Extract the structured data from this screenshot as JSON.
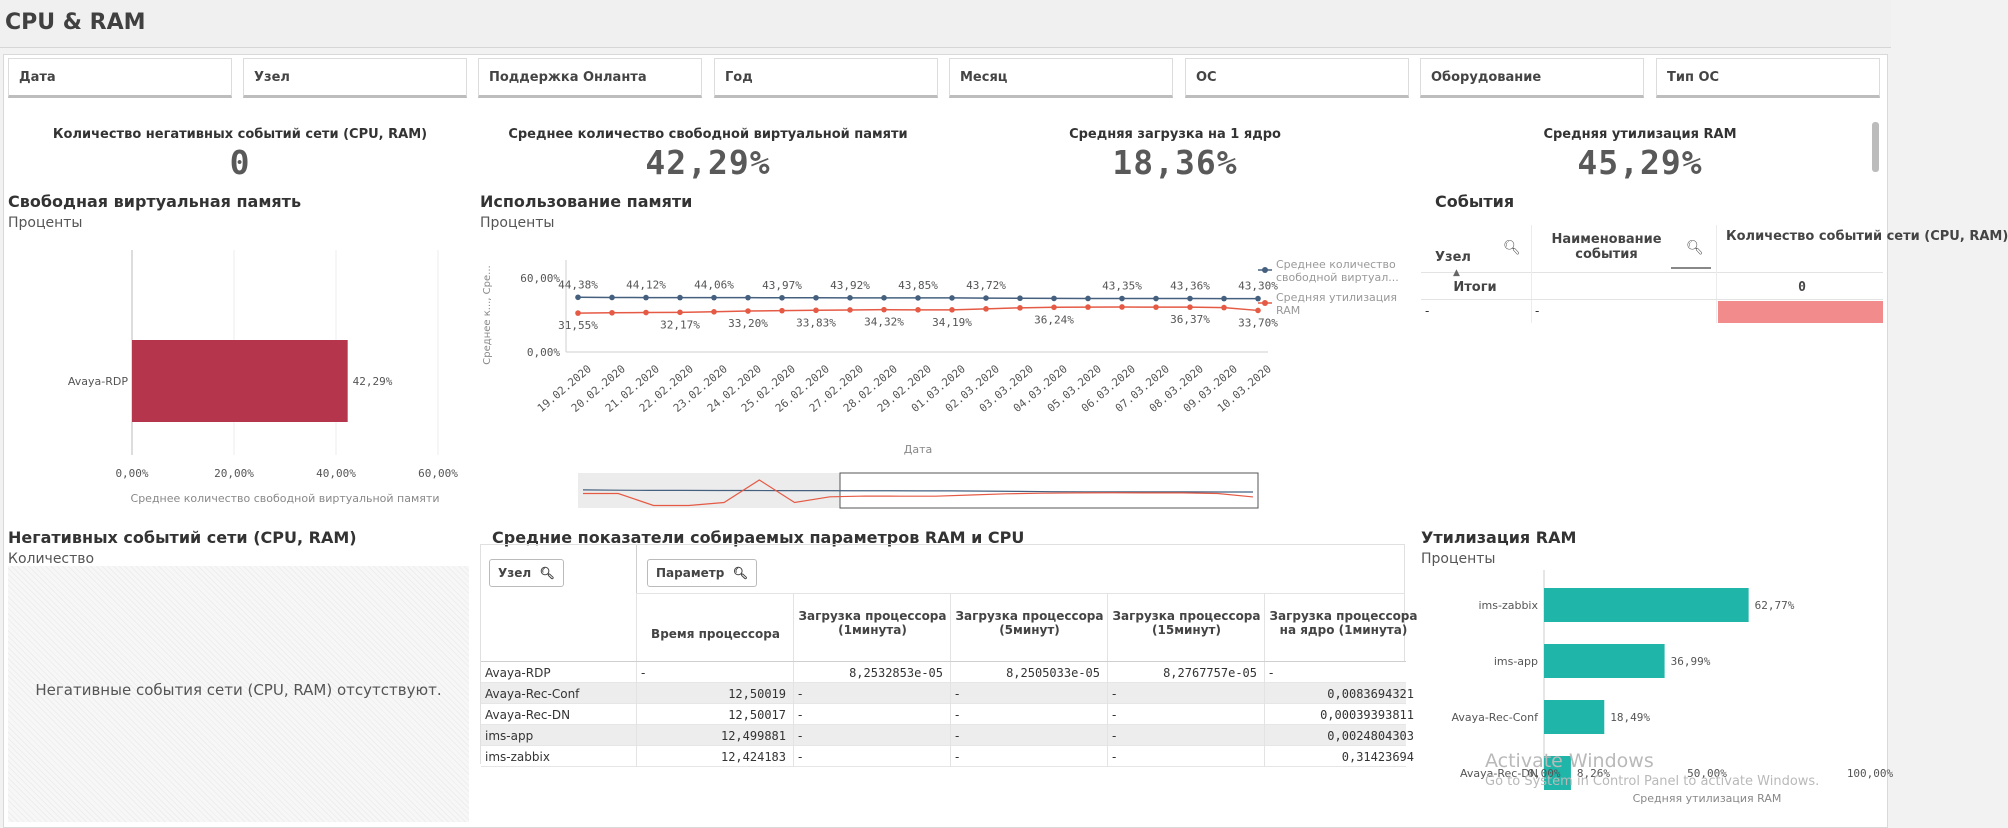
{
  "app_title": "CPU & RAM",
  "filters": [
    "Дата",
    "Узел",
    "Поддержка Онланта",
    "Год",
    "Месяц",
    "ОС",
    "Оборудование",
    "Тип ОС"
  ],
  "kpis": [
    {
      "label": "Количество негативных событий сети (CPU, RAM)",
      "value": "0"
    },
    {
      "label": "Среднее количество свободной виртуальной памяти",
      "value": "42,29%"
    },
    {
      "label": "Средняя загрузка на 1 ядро",
      "value": "18,36%"
    },
    {
      "label": "Средняя утилизация RAM",
      "value": "45,29%"
    }
  ],
  "free_vm_panel": {
    "title": "Свободная виртуальная память",
    "subtitle": "Проценты",
    "xlabel": "Среднее количество свободной виртуальной памяти"
  },
  "memory_panel": {
    "title": "Использование памяти",
    "subtitle": "Проценты",
    "ylabel": "Среднее к..., Сре...",
    "xlabel": "Дата"
  },
  "events_panel": {
    "title": "События",
    "col_node": "Узел",
    "col_name": "Наименование события",
    "col_count": "Количество событий сети (CPU, RAM)",
    "totals_label": "Итоги",
    "totals_value": "0",
    "row_node": "-",
    "row_name": "-"
  },
  "neg_panel": {
    "title": "Негативных событий сети (CPU, RAM)",
    "subtitle": "Количество",
    "empty_message": "Негативные события сети (CPU, RAM) отсутствуют."
  },
  "params_panel": {
    "title": "Средние показатели собираемых параметров RAM и CPU",
    "node_button": "Узел",
    "param_button": "Параметр",
    "columns": [
      "Время процессора",
      "Загрузка процессора (1минута)",
      "Загрузка процессора (5минут)",
      "Загрузка процессора (15минут)",
      "Загрузка процессора на ядро (1минута)"
    ],
    "rows": [
      {
        "node": "Avaya-RDP",
        "cells": [
          "-",
          "8,2532853e-05",
          "8,2505033e-05",
          "8,2767757e-05",
          "-"
        ]
      },
      {
        "node": "Avaya-Rec-Conf",
        "cells": [
          "12,50019",
          "-",
          "-",
          "-",
          "0,0083694321"
        ]
      },
      {
        "node": "Avaya-Rec-DN",
        "cells": [
          "12,50017",
          "-",
          "-",
          "-",
          "0,00039393811"
        ]
      },
      {
        "node": "ims-app",
        "cells": [
          "12,499881",
          "-",
          "-",
          "-",
          "0,0024804303"
        ]
      },
      {
        "node": "ims-zabbix",
        "cells": [
          "12,424183",
          "-",
          "-",
          "-",
          "0,31423694"
        ]
      }
    ]
  },
  "ram_panel": {
    "title": "Утилизация RAM",
    "subtitle": "Проценты",
    "xlabel": "Средняя утилизация RAM"
  },
  "watermark": {
    "line1": "Activate Windows",
    "line2": "Go to System in Control Panel to activate Windows."
  },
  "colors": {
    "vm_bar": "#b5364c",
    "ram_bar": "#1fb5a8",
    "line_vm": "#45607f",
    "line_ram": "#e55a45",
    "events_total_cell": "#f28b8b"
  },
  "chart_data": [
    {
      "type": "bar",
      "orientation": "horizontal",
      "categories": [
        "Avaya-RDP"
      ],
      "values": [
        42.29
      ],
      "value_labels": [
        "42,29%"
      ],
      "xlabel": "Среднее количество свободной виртуальной памяти",
      "xlim": [
        0,
        60
      ],
      "x_ticks": [
        "0,00%",
        "20,00%",
        "40,00%",
        "60,00%"
      ],
      "grid": true
    },
    {
      "type": "line",
      "x": [
        "19.02.2020",
        "20.02.2020",
        "21.02.2020",
        "22.02.2020",
        "23.02.2020",
        "24.02.2020",
        "25.02.2020",
        "26.02.2020",
        "27.02.2020",
        "28.02.2020",
        "29.02.2020",
        "01.03.2020",
        "02.03.2020",
        "03.03.2020",
        "04.03.2020",
        "05.03.2020",
        "06.03.2020",
        "07.03.2020",
        "08.03.2020",
        "09.03.2020",
        "10.03.2020"
      ],
      "series": [
        {
          "name": "Среднее количество свободной виртуал...",
          "values": [
            44.38,
            44.2,
            44.12,
            44.12,
            44.06,
            44.06,
            43.97,
            43.97,
            43.92,
            43.92,
            43.85,
            43.85,
            43.72,
            43.6,
            43.45,
            43.4,
            43.35,
            43.35,
            43.36,
            43.3,
            43.3
          ]
        },
        {
          "name": "Средняя утилизация RAM",
          "values": [
            31.55,
            31.8,
            32.0,
            32.17,
            32.6,
            33.2,
            33.5,
            33.83,
            34.1,
            34.32,
            34.19,
            34.19,
            35.0,
            35.8,
            36.24,
            36.4,
            36.5,
            36.37,
            36.37,
            36.0,
            33.7
          ]
        }
      ],
      "point_labels": {
        "Среднее количество свободной виртуал...": {
          "0": "44,38%",
          "2": "44,12%",
          "4": "44,06%",
          "6": "43,97%",
          "8": "43,92%",
          "10": "43,85%",
          "12": "43,72%",
          "16": "43,35%",
          "18": "43,36%",
          "20": "43,30%"
        },
        "Средняя утилизация RAM": {
          "0": "31,55%",
          "3": "32,17%",
          "5": "33,20%",
          "7": "33,83%",
          "9": "34,32%",
          "11": "34,19%",
          "14": "36,24%",
          "18": "36,37%",
          "20": "33,70%"
        }
      },
      "xlabel": "Дата",
      "ylabel": "Среднее к..., Сре...",
      "ylim": [
        0,
        60
      ],
      "y_ticks": [
        "0,00%",
        "60,00%"
      ],
      "legend": "right"
    },
    {
      "type": "bar",
      "orientation": "horizontal",
      "categories": [
        "ims-zabbix",
        "ims-app",
        "Avaya-Rec-Conf",
        "Avaya-Rec-DN"
      ],
      "values": [
        62.77,
        36.99,
        18.49,
        8.26
      ],
      "value_labels": [
        "62,77%",
        "36,99%",
        "18,49%",
        "8,26%"
      ],
      "xlabel": "Средняя утилизация RAM",
      "xlim": [
        0,
        100
      ],
      "x_ticks": [
        "0,00%",
        "50,00%",
        "100,00%"
      ]
    }
  ]
}
